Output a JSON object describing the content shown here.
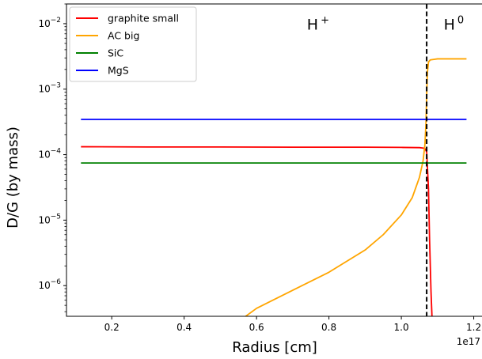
{
  "chart_data": {
    "type": "line",
    "xlabel": "Radius [cm]",
    "ylabel": "D/G (by mass)",
    "x_offset_label": "1e17",
    "x_scale_factor": 1e+17,
    "x_ticks": [
      0.2,
      0.4,
      0.6,
      0.8,
      1.0,
      1.2
    ],
    "x_tick_labels": [
      "0.2",
      "0.4",
      "0.6",
      "0.8",
      "1.0",
      "1.2"
    ],
    "xlim": [
      0.075,
      1.225
    ],
    "y_scale": "log",
    "ylim": [
      3.4e-07,
      0.02
    ],
    "y_ticks": [
      {
        "value": 1e-06,
        "base": "10",
        "exp": "−6"
      },
      {
        "value": 1e-05,
        "base": "10",
        "exp": "−5"
      },
      {
        "value": 0.0001,
        "base": "10",
        "exp": "−4"
      },
      {
        "value": 0.001,
        "base": "10",
        "exp": "−3"
      },
      {
        "value": 0.01,
        "base": "10",
        "exp": "−2"
      }
    ],
    "grid": false,
    "legend_position": "upper-left",
    "vline": {
      "x": 1.07,
      "style": "dashed",
      "color": "#000000"
    },
    "annotations": [
      {
        "base": "H",
        "sup": "+",
        "x": 0.77,
        "y": 0.0081
      },
      {
        "base": "H",
        "sup": "0",
        "x": 1.145,
        "y": 0.0081
      }
    ],
    "series": [
      {
        "name": "graphite small",
        "color": "#ff0000",
        "x": [
          0.115,
          0.3,
          0.5,
          0.7,
          0.9,
          1.0,
          1.05,
          1.06,
          1.065,
          1.07,
          1.075,
          1.078,
          1.082,
          1.085
        ],
        "y": [
          0.000132,
          0.000131,
          0.000131,
          0.00013,
          0.00013,
          0.000129,
          0.000128,
          0.000126,
          0.000124,
          0.00011,
          3e-05,
          5e-06,
          8e-07,
          3e-07
        ]
      },
      {
        "name": "AC big",
        "color": "#ffa500",
        "x": [
          0.5,
          0.57,
          0.6,
          0.7,
          0.8,
          0.9,
          0.95,
          1.0,
          1.03,
          1.05,
          1.06,
          1.065,
          1.068,
          1.07,
          1.072,
          1.075,
          1.08,
          1.1,
          1.15,
          1.18
        ],
        "y": [
          2e-07,
          3.4e-07,
          4.5e-07,
          8.5e-07,
          1.6e-06,
          3.5e-06,
          6e-06,
          1.2e-05,
          2.2e-05,
          4.5e-05,
          8e-05,
          0.00014,
          0.0003,
          0.0008,
          0.0018,
          0.0026,
          0.0028,
          0.0029,
          0.0029,
          0.0029
        ]
      },
      {
        "name": "SiC",
        "color": "#008000",
        "x": [
          0.115,
          1.18
        ],
        "y": [
          7.45e-05,
          7.45e-05
        ]
      },
      {
        "name": "MgS",
        "color": "#0000ff",
        "x": [
          0.115,
          1.18
        ],
        "y": [
          0.000345,
          0.000345
        ]
      }
    ]
  }
}
